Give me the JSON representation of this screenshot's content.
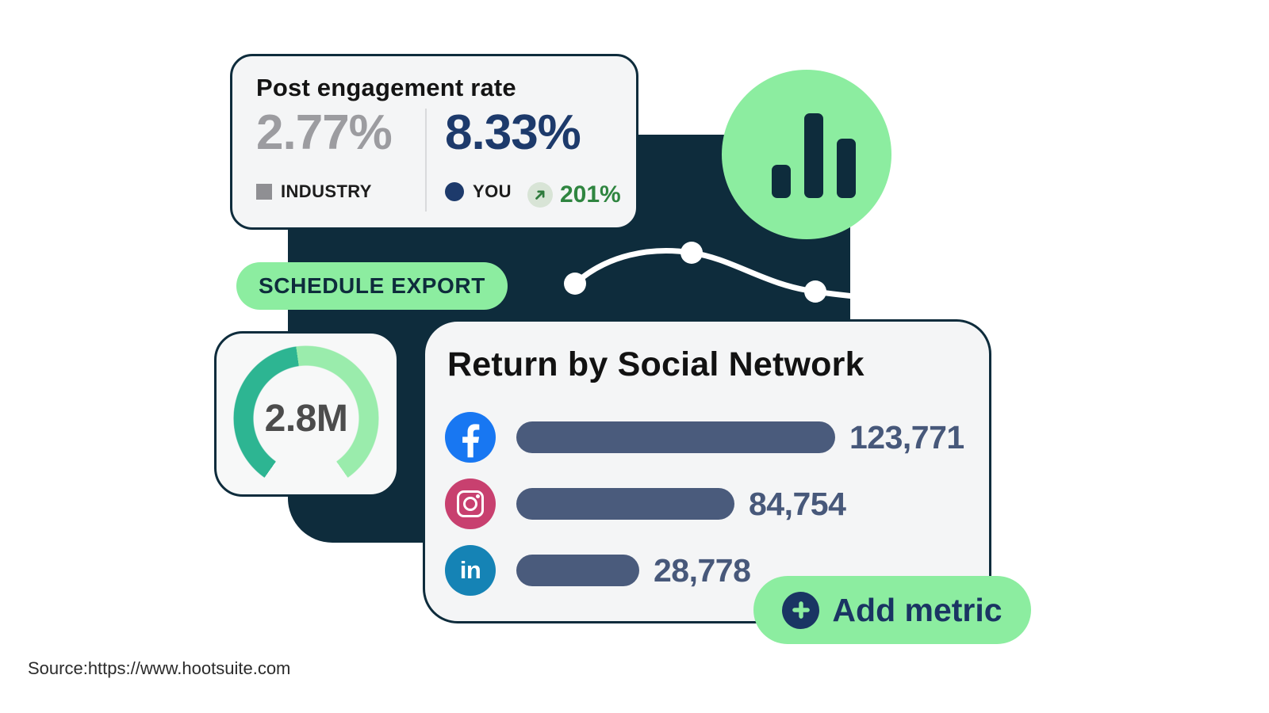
{
  "engagement_card": {
    "title": "Post engagement rate",
    "industry_value": "2.77%",
    "industry_label": "INDUSTRY",
    "you_value": "8.33%",
    "you_label": "YOU",
    "delta_label": "201%"
  },
  "buttons": {
    "schedule_export": "SCHEDULE EXPORT",
    "add_metric": "Add metric"
  },
  "gauge_card": {
    "value": "2.8M"
  },
  "social_card": {
    "title": "Return by Social Network",
    "networks": [
      "Facebook",
      "Instagram",
      "LinkedIn"
    ],
    "value_labels": [
      "123,771",
      "84,754",
      "28,778"
    ]
  },
  "source_text": "Source:https://www.hootsuite.com",
  "icons": [
    "bar-chart-icon",
    "trend-up-arrow-icon",
    "plus-icon",
    "facebook-icon",
    "instagram-icon",
    "linkedin-icon"
  ],
  "colors": {
    "dark_pine": "#0e2c3c",
    "mint_green": "#8ceda0",
    "navy_blue": "#1d3a6b",
    "slate_bar": "#4a5b7c",
    "gray_metric": "#9c9ca0",
    "delta_green": "#2f8540",
    "gauge_teal": "#2db592",
    "gauge_mint": "#9aecac",
    "facebook_blue": "#1877f2",
    "instagram_pink": "#c8406f",
    "linkedin_blue": "#1583b5",
    "card_background": "#f4f5f6"
  },
  "chart_data": [
    {
      "type": "bar",
      "orientation": "horizontal",
      "title": "Return by Social Network",
      "categories": [
        "Facebook",
        "Instagram",
        "LinkedIn"
      ],
      "values": [
        123771,
        84754,
        28778
      ],
      "value_labels": [
        "123,771",
        "84,754",
        "28,778"
      ],
      "grid": false,
      "legend_position": "row icons (platform logos)"
    },
    {
      "type": "bar",
      "title": "Post engagement rate",
      "categories": [
        "INDUSTRY",
        "YOU"
      ],
      "values": [
        2.77,
        8.33
      ],
      "value_labels": [
        "2.77%",
        "8.33%"
      ],
      "annotations": [
        "201% above industry"
      ]
    },
    {
      "type": "line",
      "title": "unlabeled trend sparkline on dark panel",
      "x": [
        1,
        2,
        3
      ],
      "y_relative_estimated": [
        0.45,
        0.8,
        0.35
      ],
      "grid": false
    },
    {
      "type": "pie",
      "title": "unlabeled donut gauge",
      "center_label": "2.8M",
      "segments_estimated_deg": {
        "teal": 137,
        "mint": 153,
        "gap": 70
      }
    }
  ]
}
